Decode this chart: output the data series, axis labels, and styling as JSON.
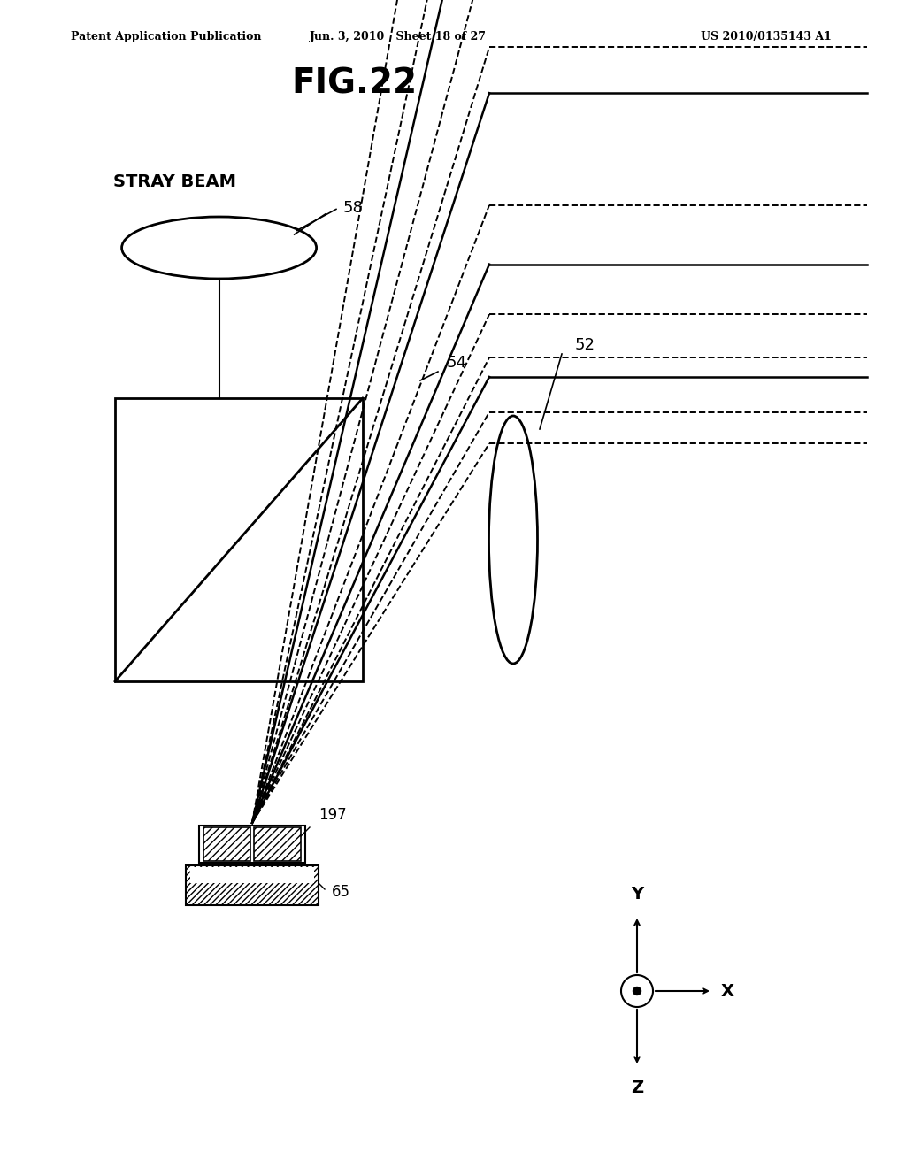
{
  "title": "FIG.22",
  "header_left": "Patent Application Publication",
  "header_center": "Jun. 3, 2010   Sheet 18 of 27",
  "header_right": "US 2010/0135143 A1",
  "bg_color": "#ffffff",
  "text_color": "#000000",
  "label_58": "58",
  "label_54": "54",
  "label_52": "52",
  "label_197": "197",
  "label_65": "65",
  "stray_beam_text": "STRAY BEAM",
  "axis_x_label": "X",
  "axis_y_label": "Y",
  "axis_z_label": "Z"
}
